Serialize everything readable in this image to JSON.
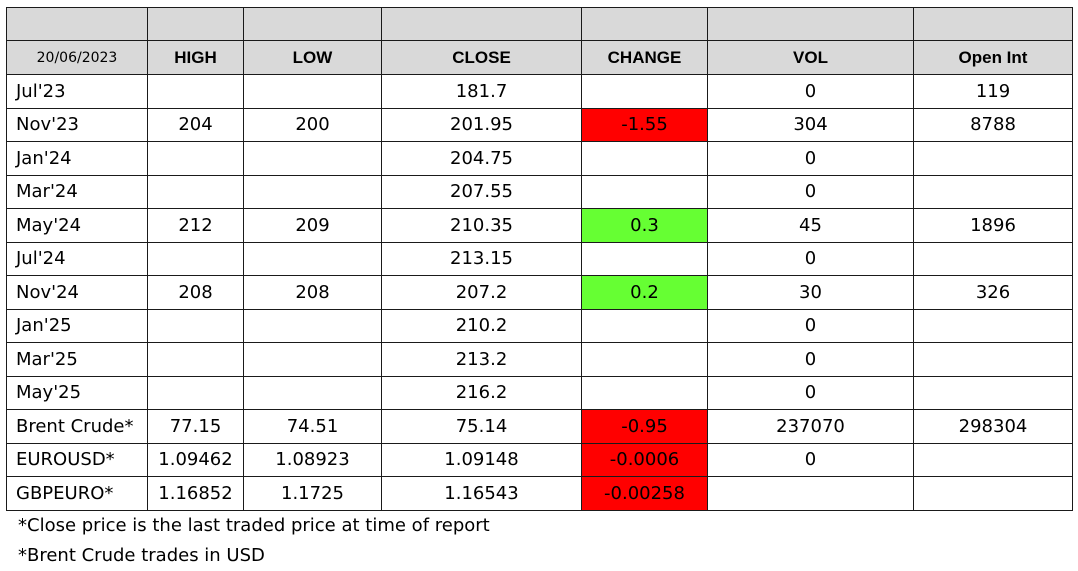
{
  "header": {
    "date": "20/06/2023",
    "high": "HIGH",
    "low": "LOW",
    "close": "CLOSE",
    "change": "CHANGE",
    "vol": "VOL",
    "open_int": "Open Int"
  },
  "rows": [
    {
      "label": "Jul'23",
      "high": "",
      "low": "",
      "close": "181.7",
      "change": "",
      "change_status": "none",
      "vol": "0",
      "open_int": "119"
    },
    {
      "label": "Nov'23",
      "high": "204",
      "low": "200",
      "close": "201.95",
      "change": "-1.55",
      "change_status": "negative",
      "vol": "304",
      "open_int": "8788"
    },
    {
      "label": "Jan'24",
      "high": "",
      "low": "",
      "close": "204.75",
      "change": "",
      "change_status": "none",
      "vol": "0",
      "open_int": ""
    },
    {
      "label": "Mar'24",
      "high": "",
      "low": "",
      "close": "207.55",
      "change": "",
      "change_status": "none",
      "vol": "0",
      "open_int": ""
    },
    {
      "label": "May'24",
      "high": "212",
      "low": "209",
      "close": "210.35",
      "change": "0.3",
      "change_status": "positive",
      "vol": "45",
      "open_int": "1896"
    },
    {
      "label": "Jul'24",
      "high": "",
      "low": "",
      "close": "213.15",
      "change": "",
      "change_status": "none",
      "vol": "0",
      "open_int": ""
    },
    {
      "label": "Nov'24",
      "high": "208",
      "low": "208",
      "close": "207.2",
      "change": "0.2",
      "change_status": "positive",
      "vol": "30",
      "open_int": "326"
    },
    {
      "label": "Jan'25",
      "high": "",
      "low": "",
      "close": "210.2",
      "change": "",
      "change_status": "none",
      "vol": "0",
      "open_int": ""
    },
    {
      "label": "Mar'25",
      "high": "",
      "low": "",
      "close": "213.2",
      "change": "",
      "change_status": "none",
      "vol": "0",
      "open_int": ""
    },
    {
      "label": "May'25",
      "high": "",
      "low": "",
      "close": "216.2",
      "change": "",
      "change_status": "none",
      "vol": "0",
      "open_int": ""
    },
    {
      "label": "Brent Crude*",
      "high": "77.15",
      "low": "74.51",
      "close": "75.14",
      "change": "-0.95",
      "change_status": "negative",
      "vol": "237070",
      "open_int": "298304"
    },
    {
      "label": "EUROUSD*",
      "high": "1.09462",
      "low": "1.08923",
      "close": "1.09148",
      "change": "-0.0006",
      "change_status": "negative",
      "vol": "0",
      "open_int": ""
    },
    {
      "label": "GBPEURO*",
      "high": "1.16852",
      "low": "1.1725",
      "close": "1.16543",
      "change": "-0.00258",
      "change_status": "negative",
      "vol": "",
      "open_int": ""
    }
  ],
  "notes": {
    "close_note": "*Close price is the last traded price at time of report",
    "brent_note": "*Brent Crude trades in USD"
  },
  "colors": {
    "negative": "#ff0000",
    "positive": "#66ff33",
    "header_fill": "#d9d9d9"
  }
}
